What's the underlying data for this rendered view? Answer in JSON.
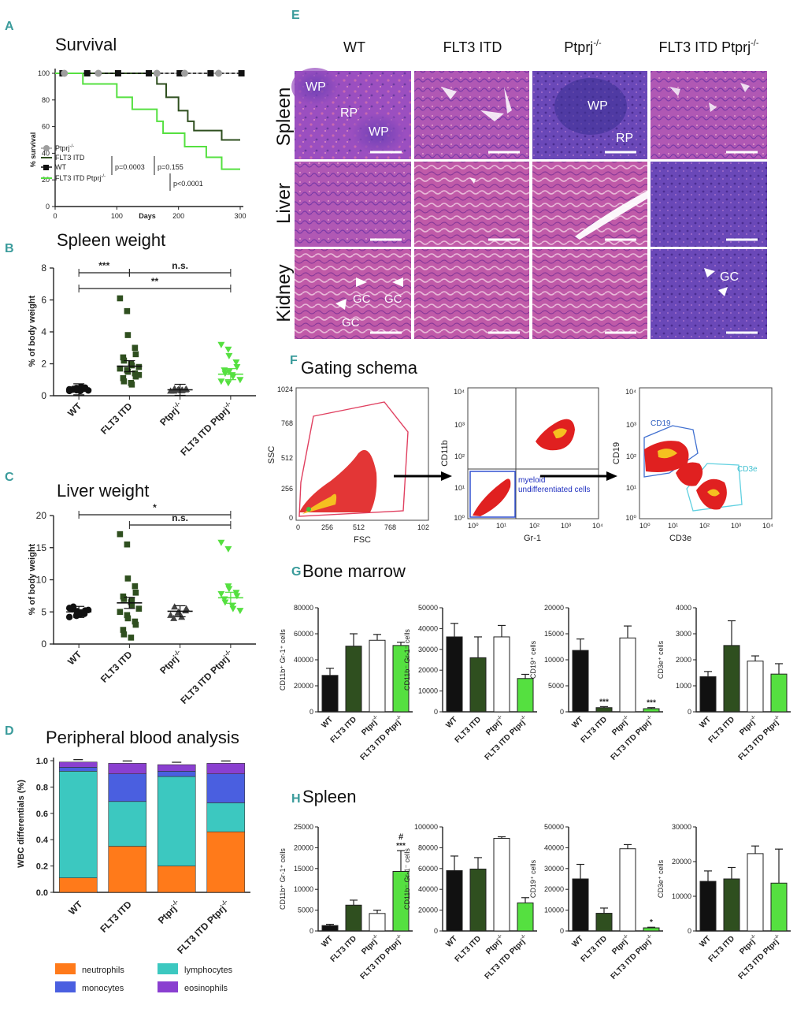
{
  "colors": {
    "wt": "#111111",
    "flt3": "#2f4f1f",
    "ptprj": "#ffffff",
    "double": "#55e040",
    "ptprj_survival": "#9e9e9e",
    "panel_label": "#3a9b9b",
    "neutrophils": "#ff7a1a",
    "lymphocytes": "#3cc8c0",
    "monocytes": "#4a5fe0",
    "eosinophils": "#8a3fd0",
    "he_purple": "#8a3fb0",
    "he_pink": "#d25aa0",
    "flow_red": "#e02020",
    "flow_yellow": "#f5c020"
  },
  "panels": {
    "A": {
      "letter": "A",
      "chart_data": {
        "type": "line",
        "title": "Survival",
        "xlabel": "Days",
        "ylabel": "% survival",
        "xlim": [
          0,
          300
        ],
        "ylim": [
          0,
          100
        ],
        "xticks": [
          "0",
          "100",
          "200",
          "300"
        ],
        "yticks": [
          "0",
          "20",
          "40",
          "60",
          "80",
          "100"
        ],
        "series": [
          {
            "name": "Ptprj",
            "sup": "-/-",
            "points": [
              [
                0,
                100
              ],
              [
                300,
                100
              ]
            ]
          },
          {
            "name": "FLT3 ITD",
            "points": [
              [
                0,
                100
              ],
              [
                165,
                100
              ],
              [
                165,
                92
              ],
              [
                180,
                92
              ],
              [
                180,
                82
              ],
              [
                200,
                82
              ],
              [
                200,
                72
              ],
              [
                215,
                72
              ],
              [
                215,
                64
              ],
              [
                225,
                64
              ],
              [
                225,
                57
              ],
              [
                270,
                57
              ],
              [
                270,
                50
              ],
              [
                300,
                50
              ]
            ]
          },
          {
            "name": "WT",
            "points": [
              [
                0,
                100
              ],
              [
                300,
                100
              ]
            ]
          },
          {
            "name": "FLT3 ITD Ptprj",
            "sup": "-/-",
            "points": [
              [
                0,
                100
              ],
              [
                45,
                100
              ],
              [
                45,
                92
              ],
              [
                100,
                92
              ],
              [
                100,
                82
              ],
              [
                125,
                82
              ],
              [
                125,
                73
              ],
              [
                165,
                73
              ],
              [
                165,
                64
              ],
              [
                175,
                64
              ],
              [
                175,
                55
              ],
              [
                210,
                55
              ],
              [
                210,
                45
              ],
              [
                245,
                45
              ],
              [
                245,
                37
              ],
              [
                270,
                37
              ],
              [
                270,
                28
              ],
              [
                300,
                28
              ]
            ]
          }
        ],
        "annotations": [
          "p=0.0003",
          "p=0.155",
          "p<0.0001"
        ]
      }
    },
    "B": {
      "letter": "B",
      "chart_data": {
        "type": "scatter",
        "title": "Spleen weight",
        "ylabel": "% of body weight",
        "ylim": [
          0,
          8
        ],
        "yticks": [
          "0",
          "2",
          "4",
          "6",
          "8"
        ],
        "categories": [
          "WT",
          "FLT3 ITD",
          "Ptprj",
          "FLT3 ITD Ptprj"
        ],
        "category_sups": [
          "",
          "",
          "-/-",
          "-/-"
        ],
        "points": [
          [
            0.3,
            0.35,
            0.4,
            0.45,
            0.5,
            0.38,
            0.42,
            0.3,
            0.55,
            0.33,
            0.4,
            0.48,
            0.36,
            0.44
          ],
          [
            6.1,
            5.3,
            3.8,
            3.0,
            2.6,
            2.4,
            2.2,
            2.0,
            1.9,
            1.8,
            1.7,
            1.6,
            1.5,
            1.4,
            1.2,
            1.1,
            0.9,
            0.8,
            0.7,
            1.3
          ],
          [
            0.3,
            0.35,
            0.4,
            0.38,
            0.42,
            0.3,
            0.45,
            0.33,
            0.36
          ],
          [
            3.2,
            2.9,
            2.5,
            2.1,
            1.8,
            1.6,
            1.4,
            1.3,
            1.2,
            1.0,
            0.9,
            0.8,
            1.5
          ]
        ],
        "means": [
          0.4,
          1.85,
          0.37,
          1.35
        ],
        "annotations": [
          "***",
          "n.s.",
          "**"
        ]
      }
    },
    "C": {
      "letter": "C",
      "chart_data": {
        "type": "scatter",
        "title": "Liver weight",
        "ylabel": "% of body weight",
        "ylim": [
          0,
          20
        ],
        "yticks": [
          "0",
          "5",
          "10",
          "15",
          "20"
        ],
        "categories": [
          "WT",
          "FLT3 ITD",
          "Ptprj",
          "FLT3 ITD Ptprj"
        ],
        "category_sups": [
          "",
          "",
          "-/-",
          "-/-"
        ],
        "points": [
          [
            4.2,
            4.5,
            4.8,
            5.0,
            5.2,
            5.5,
            5.8,
            4.6,
            4.9,
            5.3,
            5.6,
            4.4,
            5.1,
            4.7
          ],
          [
            17.1,
            15.5,
            10.2,
            9.0,
            8.0,
            7.4,
            7.0,
            6.5,
            6.0,
            5.5,
            5.0,
            4.5,
            4.0,
            3.5,
            3.0,
            2.2,
            1.5,
            1.0,
            6.8
          ],
          [
            4.5,
            4.8,
            5.0,
            5.2,
            5.5,
            4.0,
            5.8,
            4.2
          ],
          [
            15.8,
            14.8,
            8.6,
            8.0,
            7.5,
            7.0,
            6.5,
            6.0,
            5.5,
            5.2,
            7.8,
            9.0
          ]
        ],
        "means": [
          5.0,
          6.4,
          5.1,
          7.2
        ],
        "annotations": [
          "*",
          "n.s."
        ]
      }
    },
    "D": {
      "letter": "D",
      "chart_data": {
        "type": "bar",
        "stacked": true,
        "title": "Peripheral blood analysis",
        "ylabel": "WBC differentials (%)",
        "ylim": [
          0,
          1
        ],
        "yticks": [
          "0.0",
          "0.2",
          "0.4",
          "0.6",
          "0.8",
          "1.0"
        ],
        "categories": [
          "WT",
          "FLT3 ITD",
          "Ptprj",
          "FLT3 ITD Ptprj"
        ],
        "category_sups": [
          "",
          "",
          "-/-",
          "-/-"
        ],
        "series": [
          {
            "name": "neutrophils",
            "values": [
              0.11,
              0.35,
              0.2,
              0.46
            ]
          },
          {
            "name": "lymphocytes",
            "values": [
              0.81,
              0.34,
              0.68,
              0.22
            ]
          },
          {
            "name": "monocytes",
            "values": [
              0.03,
              0.21,
              0.04,
              0.22
            ]
          },
          {
            "name": "eosinophils",
            "values": [
              0.04,
              0.08,
              0.05,
              0.08
            ]
          }
        ]
      }
    },
    "E": {
      "letter": "E",
      "columns": [
        "WT",
        "FLT3 ITD",
        "Ptprj",
        "FLT3 ITD Ptprj"
      ],
      "column_sups": [
        "",
        "",
        "-/-",
        "-/-"
      ],
      "rows": [
        "Spleen",
        "Liver",
        "Kidney"
      ],
      "labels": {
        "wp": "WP",
        "rp": "RP",
        "gc": "GC"
      }
    },
    "F": {
      "letter": "F",
      "title": "Gating schema",
      "plot1": {
        "xlabel": "FSC",
        "ylabel": "SSC",
        "xticks": [
          "0",
          "256",
          "512",
          "768",
          "102"
        ],
        "yticks": [
          "0",
          "256",
          "512",
          "768",
          "1024"
        ]
      },
      "plot2": {
        "xlabel": "Gr-1",
        "ylabel": "CD11b",
        "gate_label_1": "myeloid",
        "gate_label_2": "undifferentiated cells",
        "decades": [
          "10⁰",
          "10¹",
          "10²",
          "10³",
          "10⁴"
        ]
      },
      "plot3": {
        "xlabel": "CD3e",
        "ylabel": "CD19",
        "gate_cd19": "CD19",
        "gate_cd3e": "CD3e",
        "decades": [
          "10⁰",
          "10¹",
          "10²",
          "10³",
          "10⁴"
        ]
      }
    },
    "G": {
      "letter": "G",
      "title": "Bone marrow",
      "chart_data": [
        {
          "type": "bar",
          "ylabel": "CD11b⁺ Gr-1⁺ cells",
          "ylim": [
            0,
            80000
          ],
          "yticks": [
            "0",
            "20000",
            "40000",
            "60000",
            "80000"
          ],
          "categories": [
            "WT",
            "FLT3 ITD",
            "Ptprj",
            "FLT3 ITD Ptprj"
          ],
          "values": [
            28000,
            50500,
            55000,
            51000
          ],
          "errors": [
            5500,
            9500,
            4500,
            2500
          ],
          "marks": [
            "",
            "",
            "",
            ""
          ]
        },
        {
          "type": "bar",
          "ylabel": "CD11b⁻ Gr-1⁻ cells",
          "ylim": [
            0,
            50000
          ],
          "yticks": [
            "0",
            "10000",
            "20000",
            "30000",
            "40000",
            "50000"
          ],
          "categories": [
            "WT",
            "FLT3 ITD",
            "Ptprj",
            "FLT3 ITD Ptprj"
          ],
          "values": [
            36000,
            26000,
            36000,
            16000
          ],
          "errors": [
            6500,
            10000,
            5500,
            2000
          ],
          "marks": [
            "",
            "",
            "",
            ""
          ]
        },
        {
          "type": "bar",
          "ylabel": "CD19⁺ cells",
          "ylim": [
            0,
            20000
          ],
          "yticks": [
            "0",
            "5000",
            "10000",
            "15000",
            "20000"
          ],
          "categories": [
            "WT",
            "FLT3 ITD",
            "Ptprj",
            "FLT3 ITD Ptprj"
          ],
          "values": [
            11800,
            800,
            14200,
            600
          ],
          "errors": [
            2200,
            200,
            2300,
            200
          ],
          "marks": [
            "",
            "***",
            "",
            "***"
          ]
        },
        {
          "type": "bar",
          "ylabel": "CD3e⁺ cells",
          "ylim": [
            0,
            4000
          ],
          "yticks": [
            "0",
            "1000",
            "2000",
            "3000",
            "4000"
          ],
          "categories": [
            "WT",
            "FLT3 ITD",
            "Ptprj",
            "FLT3 ITD Ptprj"
          ],
          "values": [
            1350,
            2550,
            1950,
            1450
          ],
          "errors": [
            200,
            950,
            200,
            400
          ],
          "marks": [
            "",
            "",
            "",
            ""
          ]
        }
      ]
    },
    "H": {
      "letter": "H",
      "title": "Spleen",
      "chart_data": [
        {
          "type": "bar",
          "ylabel": "CD11b⁺ Gr-1⁺ cells",
          "ylim": [
            0,
            25000
          ],
          "yticks": [
            "0",
            "5000",
            "10000",
            "15000",
            "20000",
            "25000"
          ],
          "categories": [
            "WT",
            "FLT3 ITD",
            "Ptprj",
            "FLT3 ITD Ptprj"
          ],
          "values": [
            1300,
            6200,
            4200,
            14300
          ],
          "errors": [
            300,
            1200,
            800,
            5000
          ],
          "marks": [
            "",
            "",
            "",
            "***"
          ],
          "marks2": [
            "",
            "",
            "",
            "#"
          ]
        },
        {
          "type": "bar",
          "ylabel": "CD11b⁻ Gr-1⁻ cells",
          "ylim": [
            0,
            100000
          ],
          "yticks": [
            "0",
            "20000",
            "40000",
            "60000",
            "80000",
            "100000"
          ],
          "categories": [
            "WT",
            "FLT3 ITD",
            "Ptprj",
            "FLT3 ITD Ptprj"
          ],
          "values": [
            58000,
            59500,
            89000,
            27000
          ],
          "errors": [
            14000,
            11000,
            1500,
            5000
          ],
          "marks": [
            "",
            "",
            "",
            ""
          ],
          "marks2": [
            "",
            "",
            "",
            ""
          ]
        },
        {
          "type": "bar",
          "ylabel": "CD19⁺ cells",
          "ylim": [
            0,
            50000
          ],
          "yticks": [
            "0",
            "10000",
            "20000",
            "30000",
            "40000",
            "50000"
          ],
          "categories": [
            "WT",
            "FLT3 ITD",
            "Ptprj",
            "FLT3 ITD Ptprj"
          ],
          "values": [
            25000,
            8500,
            39500,
            1500
          ],
          "errors": [
            7000,
            2500,
            2000,
            300
          ],
          "marks": [
            "",
            "",
            "",
            "*"
          ],
          "marks2": [
            "",
            "",
            "",
            ""
          ]
        },
        {
          "type": "bar",
          "ylabel": "CD3e⁺ cells",
          "ylim": [
            0,
            30000
          ],
          "yticks": [
            "0",
            "10000",
            "20000",
            "30000"
          ],
          "categories": [
            "WT",
            "FLT3 ITD",
            "Ptprj",
            "FLT3 ITD Ptprj"
          ],
          "values": [
            14300,
            15000,
            22300,
            13800
          ],
          "errors": [
            3000,
            3300,
            2200,
            9800
          ],
          "marks": [
            "",
            "",
            "",
            ""
          ],
          "marks2": [
            "",
            "",
            "",
            ""
          ]
        }
      ]
    }
  }
}
